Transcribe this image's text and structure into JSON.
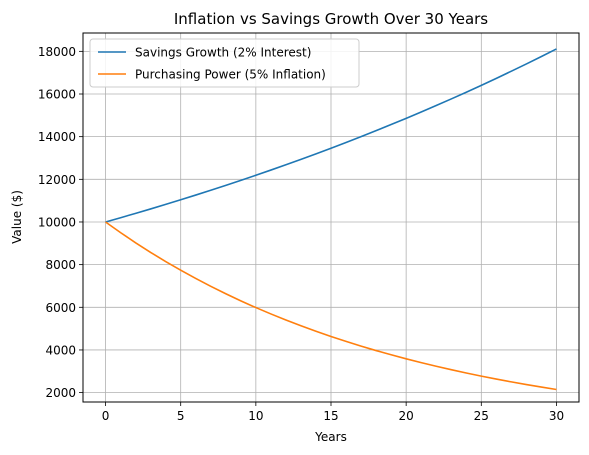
{
  "chart_data": {
    "type": "line",
    "title": "Inflation vs Savings Growth Over 30 Years",
    "xlabel": "Years",
    "ylabel": "Value ($)",
    "xlim": [
      -1.5,
      31.5
    ],
    "ylim": [
      1560,
      18860
    ],
    "xticks": [
      0,
      5,
      10,
      15,
      20,
      25,
      30
    ],
    "yticks": [
      2000,
      4000,
      6000,
      8000,
      10000,
      12000,
      14000,
      16000,
      18000
    ],
    "grid": true,
    "legend_position": "top-left",
    "series": [
      {
        "name": "Savings Growth (2% Interest)",
        "color": "#1f77b4",
        "x": [
          0,
          1,
          2,
          3,
          4,
          5,
          6,
          7,
          8,
          9,
          10,
          11,
          12,
          13,
          14,
          15,
          16,
          17,
          18,
          19,
          20,
          21,
          22,
          23,
          24,
          25,
          26,
          27,
          28,
          29,
          30
        ],
        "values": [
          10000,
          10200,
          10404,
          10612,
          10824,
          11041,
          11262,
          11487,
          11717,
          11951,
          12190,
          12434,
          12682,
          12936,
          13195,
          13459,
          13728,
          14002,
          14282,
          14568,
          14859,
          15157,
          15460,
          15769,
          16084,
          16406,
          16734,
          17069,
          17410,
          17758,
          18114
        ]
      },
      {
        "name": "Purchasing Power (5% Inflation)",
        "color": "#ff7f0e",
        "x": [
          0,
          1,
          2,
          3,
          4,
          5,
          6,
          7,
          8,
          9,
          10,
          11,
          12,
          13,
          14,
          15,
          16,
          17,
          18,
          19,
          20,
          21,
          22,
          23,
          24,
          25,
          26,
          27,
          28,
          29,
          30
        ],
        "values": [
          10000,
          9500,
          9025,
          8574,
          8145,
          7738,
          7351,
          6983,
          6634,
          6302,
          5987,
          5688,
          5404,
          5133,
          4877,
          4633,
          4401,
          4181,
          3972,
          3774,
          3585,
          3406,
          3235,
          3074,
          2920,
          2774,
          2635,
          2503,
          2378,
          2259,
          2146
        ]
      }
    ]
  }
}
